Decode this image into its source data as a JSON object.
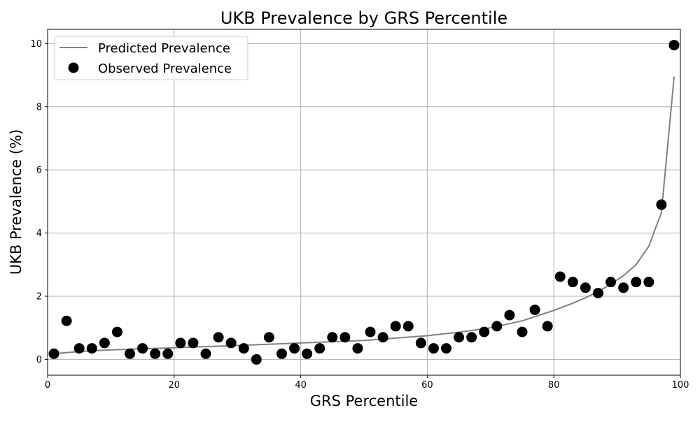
{
  "chart_data": {
    "type": "scatter",
    "title": "UKB Prevalence by GRS Percentile",
    "xlabel": "GRS Percentile",
    "ylabel": "UKB Prevalence (%)",
    "xlim": [
      0,
      100
    ],
    "ylim": [
      -0.5,
      10.45
    ],
    "x_ticks": [
      0,
      20,
      40,
      60,
      80,
      100
    ],
    "y_ticks": [
      0,
      2,
      4,
      6,
      8,
      10
    ],
    "grid": true,
    "legend_position": "top-left",
    "series": [
      {
        "name": "Predicted Prevalence",
        "kind": "line",
        "color": "#808080",
        "x": [
          1,
          5,
          10,
          20,
          30,
          40,
          50,
          60,
          65,
          70,
          75,
          80,
          83,
          85,
          87,
          89,
          91,
          93,
          95,
          97,
          99
        ],
        "y": [
          0.18,
          0.25,
          0.3,
          0.37,
          0.44,
          0.52,
          0.6,
          0.75,
          0.86,
          1.0,
          1.22,
          1.55,
          1.78,
          1.95,
          2.15,
          2.38,
          2.65,
          3.0,
          3.58,
          4.65,
          8.95
        ]
      },
      {
        "name": "Observed Prevalence",
        "kind": "scatter",
        "color": "#000000",
        "x": [
          1,
          3,
          5,
          7,
          9,
          11,
          13,
          15,
          17,
          19,
          21,
          23,
          25,
          27,
          29,
          31,
          33,
          35,
          37,
          39,
          41,
          43,
          45,
          47,
          49,
          51,
          53,
          55,
          57,
          59,
          61,
          63,
          65,
          67,
          69,
          71,
          73,
          75,
          77,
          79,
          81,
          83,
          85,
          87,
          89,
          91,
          93,
          95,
          97,
          99
        ],
        "y": [
          0.18,
          1.22,
          0.35,
          0.35,
          0.52,
          0.87,
          0.18,
          0.35,
          0.18,
          0.18,
          0.52,
          0.52,
          0.18,
          0.7,
          0.52,
          0.35,
          0.0,
          0.7,
          0.18,
          0.35,
          0.18,
          0.35,
          0.7,
          0.7,
          0.35,
          0.87,
          0.7,
          1.05,
          1.05,
          0.52,
          0.35,
          0.35,
          0.7,
          0.7,
          0.87,
          1.05,
          1.4,
          0.87,
          1.57,
          1.05,
          2.62,
          2.45,
          2.27,
          2.1,
          2.45,
          2.27,
          2.45,
          2.45,
          4.9,
          9.95
        ]
      }
    ]
  }
}
